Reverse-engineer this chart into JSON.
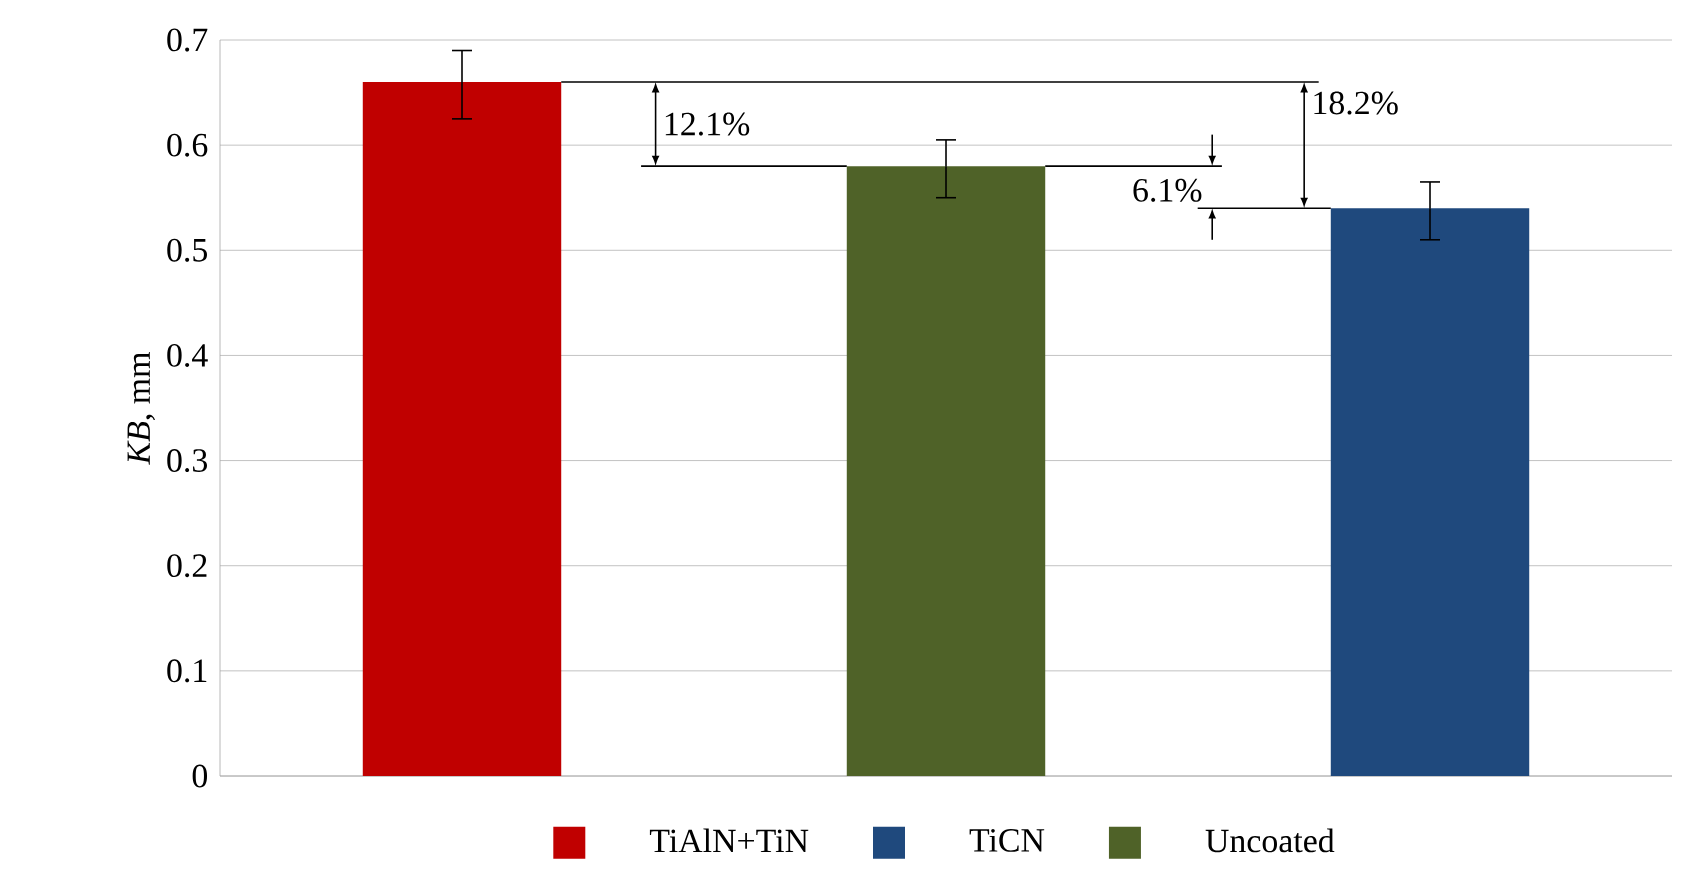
{
  "chart_data": {
    "type": "bar",
    "ylabel": "*KB*, mm",
    "categories": [
      null,
      null,
      null
    ],
    "series": [
      {
        "name": "TiAlN+TiN",
        "color": "#c00000",
        "values": [
          0.66,
          null,
          null
        ],
        "errors": [
          [
            0.625,
            0.69
          ],
          null,
          null
        ]
      },
      {
        "name": "TiCN",
        "color": "#1f497d",
        "values": [
          null,
          null,
          0.54
        ],
        "errors": [
          null,
          null,
          [
            0.51,
            0.565
          ]
        ]
      },
      {
        "name": "Uncoated",
        "color": "#4f6228",
        "values": [
          null,
          0.58,
          null
        ],
        "errors": [
          null,
          [
            0.55,
            0.605
          ],
          null
        ]
      }
    ],
    "ylim": [
      0,
      0.7
    ],
    "yticks": [
      0,
      0.1,
      0.2,
      0.3,
      0.4,
      0.5,
      0.6,
      0.7
    ],
    "grid": "y",
    "legend": "bottom",
    "annotations": [
      "12.1%",
      "6.1%",
      "18.2%"
    ]
  }
}
